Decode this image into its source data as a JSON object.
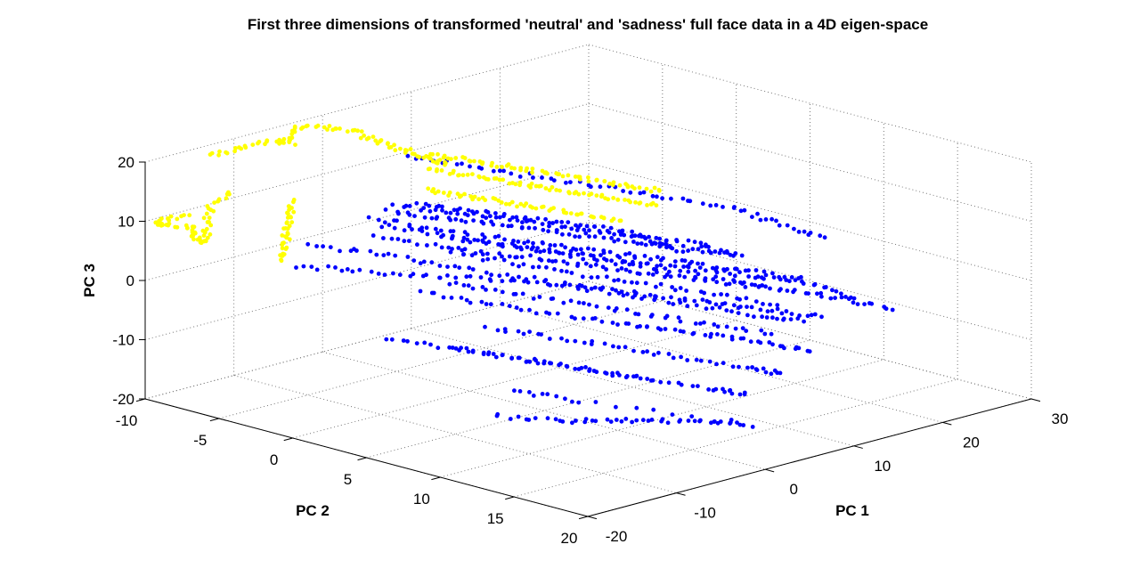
{
  "chart_data": {
    "type": "scatter",
    "projection": "3d",
    "title": "First three dimensions of transformed 'neutral' and 'sadness' full face data in a 4D eigen-space",
    "xlabel": "PC 1",
    "ylabel": "PC 2",
    "zlabel": "PC 3",
    "xlim": [
      -20,
      30
    ],
    "ylim": [
      -10,
      20
    ],
    "zlim": [
      -20,
      20
    ],
    "x_ticks": [
      -20,
      -10,
      0,
      10,
      20,
      30
    ],
    "y_ticks": [
      -10,
      -5,
      0,
      5,
      10,
      15,
      20
    ],
    "z_ticks": [
      -20,
      -10,
      0,
      10,
      20
    ],
    "x_tick_labels": [
      "-20",
      "-10",
      "0",
      "10",
      "20",
      "30"
    ],
    "y_tick_labels": [
      "-10",
      "-5",
      "0",
      "5",
      "10",
      "15",
      "20"
    ],
    "z_tick_labels": [
      "-20",
      "-10",
      "0",
      "10",
      "20"
    ],
    "grid": true,
    "series": [
      {
        "name": "neutral",
        "color": "#0000ff",
        "trajectories": [
          [
            [
              4,
              -6,
              6
            ],
            [
              8,
              -5,
              4
            ],
            [
              12,
              -4,
              2
            ],
            [
              16,
              -3,
              0
            ],
            [
              20,
              -2,
              -2
            ],
            [
              22,
              -1,
              -4
            ],
            [
              24,
              0,
              -6
            ]
          ],
          [
            [
              0,
              -5,
              8
            ],
            [
              4,
              -4,
              6
            ],
            [
              8,
              -3,
              4
            ],
            [
              12,
              -2,
              2
            ],
            [
              16,
              -1,
              0
            ],
            [
              20,
              0,
              -2
            ],
            [
              24,
              1,
              -4
            ],
            [
              26,
              2,
              -6
            ]
          ],
          [
            [
              -4,
              -3,
              10
            ],
            [
              0,
              -2,
              8
            ],
            [
              4,
              -1,
              6
            ],
            [
              8,
              0,
              4
            ],
            [
              12,
              1,
              2
            ],
            [
              16,
              2,
              0
            ],
            [
              20,
              3,
              -2
            ],
            [
              24,
              4,
              -4
            ]
          ],
          [
            [
              -8,
              -2,
              11
            ],
            [
              -4,
              0,
              9
            ],
            [
              0,
              2,
              7
            ],
            [
              4,
              3,
              5
            ],
            [
              8,
              4,
              3
            ],
            [
              12,
              5,
              1
            ],
            [
              16,
              6,
              -1
            ],
            [
              20,
              7,
              -3
            ],
            [
              24,
              8,
              -5
            ]
          ],
          [
            [
              -10,
              0,
              12
            ],
            [
              -6,
              2,
              10
            ],
            [
              -2,
              4,
              8
            ],
            [
              2,
              5,
              6
            ],
            [
              6,
              6,
              4
            ],
            [
              10,
              7,
              2
            ],
            [
              14,
              8,
              0
            ],
            [
              18,
              9,
              -2
            ],
            [
              22,
              10,
              -4
            ],
            [
              25,
              11,
              -7
            ]
          ],
          [
            [
              -14,
              2,
              13
            ],
            [
              -10,
              4,
              11
            ],
            [
              -6,
              5,
              9
            ],
            [
              -2,
              6,
              7
            ],
            [
              2,
              7,
              5
            ],
            [
              6,
              8,
              3
            ],
            [
              10,
              9,
              1
            ],
            [
              14,
              10,
              -1
            ],
            [
              18,
              11,
              -3
            ],
            [
              22,
              12,
              -5
            ],
            [
              26,
              13,
              -8
            ]
          ],
          [
            [
              -18,
              0,
              12
            ],
            [
              -14,
              2,
              10
            ],
            [
              -10,
              4,
              8
            ],
            [
              -6,
              6,
              6
            ],
            [
              -2,
              8,
              4
            ],
            [
              2,
              9,
              2
            ],
            [
              6,
              10,
              0
            ],
            [
              10,
              11,
              -2
            ],
            [
              14,
              12,
              -4
            ],
            [
              18,
              13,
              -6
            ]
          ],
          [
            [
              -16,
              -2,
              6
            ],
            [
              -12,
              0,
              5
            ],
            [
              -8,
              2,
              4
            ],
            [
              -4,
              4,
              3
            ],
            [
              0,
              6,
              2
            ],
            [
              4,
              8,
              0
            ],
            [
              8,
              10,
              -2
            ],
            [
              12,
              12,
              -4
            ],
            [
              16,
              13,
              -6
            ]
          ],
          [
            [
              -12,
              4,
              4
            ],
            [
              -8,
              6,
              2
            ],
            [
              -4,
              8,
              0
            ],
            [
              0,
              10,
              -2
            ],
            [
              4,
              11,
              -4
            ],
            [
              8,
              12,
              -6
            ],
            [
              12,
              13,
              -8
            ],
            [
              15,
              14,
              -10
            ]
          ],
          [
            [
              -8,
              6,
              -2
            ],
            [
              -4,
              8,
              -4
            ],
            [
              0,
              10,
              -6
            ],
            [
              4,
              12,
              -8
            ],
            [
              8,
              14,
              -10
            ],
            [
              10,
              15,
              -11
            ]
          ],
          [
            [
              -6,
              2,
              2
            ],
            [
              -2,
              4,
              0
            ],
            [
              2,
              6,
              -2
            ],
            [
              6,
              8,
              -4
            ],
            [
              10,
              10,
              -6
            ],
            [
              14,
              12,
              -8
            ]
          ],
          [
            [
              -2,
              0,
              4
            ],
            [
              2,
              2,
              2
            ],
            [
              6,
              4,
              0
            ],
            [
              10,
              6,
              -2
            ],
            [
              14,
              8,
              -4
            ],
            [
              18,
              10,
              -6
            ]
          ],
          [
            [
              0,
              -2,
              5
            ],
            [
              4,
              0,
              3
            ],
            [
              8,
              2,
              1
            ],
            [
              12,
              4,
              -1
            ],
            [
              16,
              6,
              -3
            ],
            [
              20,
              8,
              -5
            ]
          ],
          [
            [
              -12,
              6,
              -4
            ],
            [
              -8,
              8,
              -6
            ],
            [
              -4,
              10,
              -8
            ],
            [
              0,
              12,
              -10
            ],
            [
              4,
              14,
              -12
            ],
            [
              6,
              15,
              -13
            ]
          ],
          [
            [
              -16,
              4,
              -2
            ],
            [
              -12,
              6,
              -4
            ],
            [
              -8,
              8,
              -6
            ],
            [
              -4,
              10,
              -8
            ],
            [
              0,
              12,
              -10
            ]
          ],
          [
            [
              -14,
              10,
              -12
            ],
            [
              -10,
              12,
              -13
            ],
            [
              -6,
              13,
              -14
            ],
            [
              -2,
              14,
              -15
            ],
            [
              2,
              15,
              -16
            ],
            [
              5,
              16,
              -17
            ],
            [
              -6,
              11,
              -12
            ],
            [
              -10,
              9,
              -10
            ]
          ],
          [
            [
              6,
              -8,
              12
            ],
            [
              10,
              -6,
              10
            ],
            [
              14,
              -4,
              8
            ],
            [
              18,
              -2,
              6
            ],
            [
              22,
              0,
              4
            ],
            [
              26,
              2,
              2
            ],
            [
              28,
              4,
              0
            ],
            [
              30,
              6,
              -2
            ]
          ]
        ]
      },
      {
        "name": "sadness",
        "color": "#ffff00",
        "trajectories": [
          [
            [
              2,
              -4,
              14
            ],
            [
              4,
              -3,
              13
            ],
            [
              6,
              -2,
              12
            ],
            [
              8,
              -1,
              11
            ],
            [
              10,
              0,
              10
            ],
            [
              12,
              1,
              9
            ],
            [
              14,
              2,
              8
            ],
            [
              16,
              3,
              7
            ]
          ],
          [
            [
              4,
              -5,
              15
            ],
            [
              6,
              -4,
              14
            ],
            [
              8,
              -3,
              13
            ],
            [
              10,
              -2,
              12
            ],
            [
              12,
              -1,
              11
            ],
            [
              14,
              0,
              10
            ],
            [
              16,
              1,
              9
            ],
            [
              18,
              2,
              8
            ]
          ],
          [
            [
              0,
              -3,
              12
            ],
            [
              2,
              -2,
              11
            ],
            [
              4,
              -1,
              10
            ],
            [
              6,
              0,
              9
            ],
            [
              8,
              1,
              8
            ],
            [
              10,
              2,
              7
            ],
            [
              12,
              3,
              6
            ]
          ],
          [
            [
              -4,
              -5,
              22
            ],
            [
              -6,
              -6,
              23
            ],
            [
              -8,
              -7,
              23
            ],
            [
              -10,
              -6,
              22
            ],
            [
              -12,
              -6,
              23
            ],
            [
              -14,
              -7,
              22
            ],
            [
              -16,
              -8,
              21
            ]
          ],
          [
            [
              -2,
              -6,
              20
            ],
            [
              0,
              -5,
              18
            ],
            [
              2,
              -4,
              16
            ],
            [
              4,
              -4,
              14
            ],
            [
              -4,
              -5,
              21
            ]
          ],
          [
            [
              -14,
              -8,
              14
            ],
            [
              -16,
              -8,
              12
            ],
            [
              -18,
              -7,
              10
            ],
            [
              -20,
              -6,
              9
            ],
            [
              -18,
              -8,
              8
            ],
            [
              -16,
              -9,
              8
            ],
            [
              -20,
              -9,
              10
            ],
            [
              -22,
              -8,
              12
            ],
            [
              -20,
              -7,
              13
            ]
          ],
          [
            [
              -10,
              -6,
              12
            ],
            [
              -12,
              -5,
              11
            ],
            [
              -14,
              -4,
              10
            ],
            [
              -16,
              -3,
              9
            ],
            [
              -18,
              -2,
              8
            ]
          ]
        ]
      }
    ]
  }
}
